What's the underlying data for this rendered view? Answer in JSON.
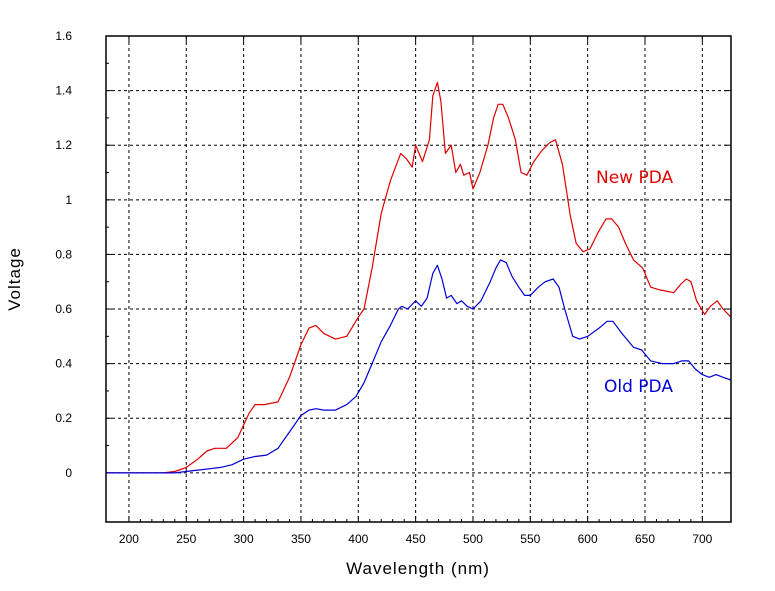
{
  "chart_data": {
    "type": "line",
    "xlabel": "Wavelength (nm)",
    "ylabel": "Voltage",
    "xlim": [
      180,
      725
    ],
    "ylim": [
      -0.18,
      1.6
    ],
    "x_ticks": [
      200,
      250,
      300,
      350,
      400,
      450,
      500,
      550,
      600,
      650,
      700
    ],
    "y_ticks": [
      0,
      0.2,
      0.4,
      0.6,
      0.8,
      1,
      1.2,
      1.4,
      1.6
    ],
    "y_tick_labels": [
      "0",
      "0.2",
      "0.4",
      "0.6",
      "0.8",
      "1",
      "1.2",
      "1.4",
      "1.6"
    ],
    "grid": true,
    "series": [
      {
        "name": "New PDA",
        "color": "#e00000",
        "points": [
          [
            180,
            0
          ],
          [
            230,
            0
          ],
          [
            240,
            0.005
          ],
          [
            250,
            0.02
          ],
          [
            260,
            0.05
          ],
          [
            268,
            0.08
          ],
          [
            275,
            0.09
          ],
          [
            285,
            0.09
          ],
          [
            295,
            0.13
          ],
          [
            305,
            0.22
          ],
          [
            310,
            0.25
          ],
          [
            318,
            0.25
          ],
          [
            330,
            0.26
          ],
          [
            340,
            0.35
          ],
          [
            350,
            0.47
          ],
          [
            357,
            0.53
          ],
          [
            363,
            0.54
          ],
          [
            370,
            0.51
          ],
          [
            380,
            0.49
          ],
          [
            390,
            0.5
          ],
          [
            400,
            0.57
          ],
          [
            405,
            0.6
          ],
          [
            412,
            0.75
          ],
          [
            420,
            0.95
          ],
          [
            428,
            1.07
          ],
          [
            437,
            1.17
          ],
          [
            442,
            1.15
          ],
          [
            447,
            1.12
          ],
          [
            450,
            1.2
          ],
          [
            456,
            1.14
          ],
          [
            462,
            1.22
          ],
          [
            465,
            1.38
          ],
          [
            469,
            1.43
          ],
          [
            472,
            1.36
          ],
          [
            476,
            1.17
          ],
          [
            481,
            1.2
          ],
          [
            485,
            1.1
          ],
          [
            489,
            1.13
          ],
          [
            492,
            1.09
          ],
          [
            497,
            1.1
          ],
          [
            500,
            1.04
          ],
          [
            506,
            1.1
          ],
          [
            513,
            1.2
          ],
          [
            518,
            1.3
          ],
          [
            522,
            1.35
          ],
          [
            526,
            1.35
          ],
          [
            531,
            1.3
          ],
          [
            537,
            1.22
          ],
          [
            542,
            1.1
          ],
          [
            547,
            1.09
          ],
          [
            553,
            1.14
          ],
          [
            560,
            1.18
          ],
          [
            567,
            1.21
          ],
          [
            572,
            1.22
          ],
          [
            578,
            1.13
          ],
          [
            585,
            0.94
          ],
          [
            590,
            0.84
          ],
          [
            596,
            0.81
          ],
          [
            602,
            0.82
          ],
          [
            609,
            0.88
          ],
          [
            616,
            0.93
          ],
          [
            621,
            0.93
          ],
          [
            627,
            0.9
          ],
          [
            633,
            0.84
          ],
          [
            640,
            0.78
          ],
          [
            648,
            0.75
          ],
          [
            655,
            0.68
          ],
          [
            663,
            0.67
          ],
          [
            675,
            0.66
          ],
          [
            681,
            0.69
          ],
          [
            686,
            0.71
          ],
          [
            690,
            0.7
          ],
          [
            695,
            0.63
          ],
          [
            702,
            0.58
          ],
          [
            707,
            0.61
          ],
          [
            713,
            0.63
          ],
          [
            718,
            0.6
          ],
          [
            725,
            0.57
          ]
        ]
      },
      {
        "name": "Old PDA",
        "color": "#0000d8",
        "points": [
          [
            180,
            0
          ],
          [
            230,
            0
          ],
          [
            240,
            0
          ],
          [
            250,
            0.005
          ],
          [
            260,
            0.01
          ],
          [
            270,
            0.015
          ],
          [
            280,
            0.02
          ],
          [
            290,
            0.03
          ],
          [
            300,
            0.05
          ],
          [
            310,
            0.06
          ],
          [
            320,
            0.065
          ],
          [
            330,
            0.09
          ],
          [
            340,
            0.15
          ],
          [
            350,
            0.21
          ],
          [
            357,
            0.23
          ],
          [
            363,
            0.235
          ],
          [
            370,
            0.23
          ],
          [
            380,
            0.23
          ],
          [
            390,
            0.25
          ],
          [
            398,
            0.28
          ],
          [
            405,
            0.33
          ],
          [
            412,
            0.4
          ],
          [
            420,
            0.48
          ],
          [
            428,
            0.54
          ],
          [
            435,
            0.6
          ],
          [
            438,
            0.61
          ],
          [
            443,
            0.6
          ],
          [
            450,
            0.63
          ],
          [
            455,
            0.61
          ],
          [
            460,
            0.64
          ],
          [
            465,
            0.73
          ],
          [
            469,
            0.76
          ],
          [
            473,
            0.71
          ],
          [
            477,
            0.64
          ],
          [
            481,
            0.65
          ],
          [
            486,
            0.62
          ],
          [
            490,
            0.63
          ],
          [
            495,
            0.61
          ],
          [
            500,
            0.6
          ],
          [
            507,
            0.63
          ],
          [
            515,
            0.7
          ],
          [
            520,
            0.75
          ],
          [
            524,
            0.78
          ],
          [
            529,
            0.77
          ],
          [
            534,
            0.72
          ],
          [
            540,
            0.68
          ],
          [
            545,
            0.65
          ],
          [
            550,
            0.65
          ],
          [
            557,
            0.68
          ],
          [
            563,
            0.7
          ],
          [
            570,
            0.71
          ],
          [
            575,
            0.68
          ],
          [
            580,
            0.6
          ],
          [
            587,
            0.5
          ],
          [
            593,
            0.49
          ],
          [
            600,
            0.5
          ],
          [
            610,
            0.53
          ],
          [
            617,
            0.555
          ],
          [
            622,
            0.555
          ],
          [
            630,
            0.51
          ],
          [
            640,
            0.46
          ],
          [
            647,
            0.45
          ],
          [
            655,
            0.41
          ],
          [
            665,
            0.4
          ],
          [
            675,
            0.4
          ],
          [
            682,
            0.41
          ],
          [
            688,
            0.41
          ],
          [
            694,
            0.38
          ],
          [
            700,
            0.36
          ],
          [
            706,
            0.35
          ],
          [
            712,
            0.36
          ],
          [
            718,
            0.35
          ],
          [
            725,
            0.34
          ]
        ]
      }
    ]
  }
}
